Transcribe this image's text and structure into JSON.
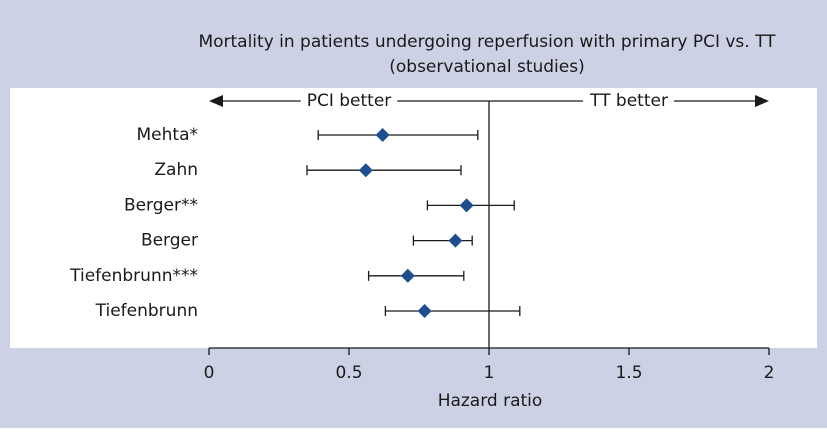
{
  "chart_data": {
    "type": "forest",
    "title": "Mortality in patients undergoing reperfusion with primary PCI vs. TT",
    "subtitle": "(observational studies)",
    "annotations": [
      "PCI better",
      "TT better"
    ],
    "xlabel": "Hazard ratio",
    "categories": [
      "Mehta*",
      "Zahn",
      "Berger**",
      "Berger",
      "Tiefenbrunn***",
      "Tiefenbrunn"
    ],
    "values": [
      0.62,
      0.56,
      0.92,
      0.88,
      0.71,
      0.77
    ],
    "ci_lower": [
      0.39,
      0.35,
      0.78,
      0.73,
      0.57,
      0.63
    ],
    "ci_upper": [
      0.96,
      0.9,
      1.09,
      0.94,
      0.91,
      1.11
    ],
    "reference": 1,
    "color": "#1d4f8f",
    "xlim": [
      0,
      2
    ],
    "xticks": [
      0,
      0.5,
      1,
      1.5,
      2
    ]
  }
}
